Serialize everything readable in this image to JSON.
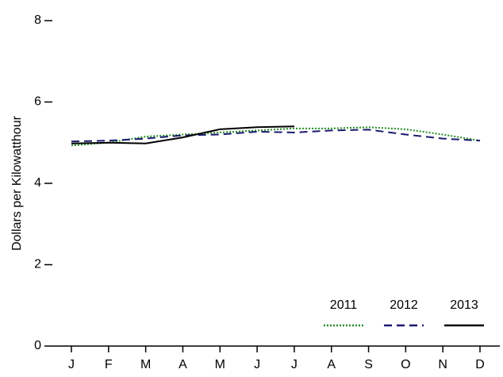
{
  "chart_data": {
    "type": "line",
    "y_label": "Dollars per Kilowatthour",
    "categories": [
      "J",
      "F",
      "M",
      "A",
      "M",
      "J",
      "J",
      "A",
      "S",
      "O",
      "N",
      "D"
    ],
    "series": [
      {
        "name": "2011",
        "color": "#228b22",
        "style": "dotted",
        "values": [
          4.93,
          5.0,
          5.15,
          5.2,
          5.25,
          5.3,
          5.35,
          5.35,
          5.38,
          5.33,
          5.2,
          5.05
        ]
      },
      {
        "name": "2012",
        "color": "#1a1a6e",
        "style": "dashed",
        "values": [
          5.03,
          5.05,
          5.1,
          5.18,
          5.2,
          5.27,
          5.25,
          5.3,
          5.32,
          5.2,
          5.1,
          5.05
        ]
      },
      {
        "name": "2013",
        "color": "#000000",
        "style": "solid",
        "values": [
          4.98,
          5.0,
          4.98,
          5.13,
          5.33,
          5.38,
          5.4,
          null,
          null,
          null,
          null,
          null
        ]
      }
    ],
    "ylim": [
      0,
      8
    ],
    "yticks": [
      0,
      2,
      4,
      6,
      8
    ],
    "legend": "lower right"
  }
}
